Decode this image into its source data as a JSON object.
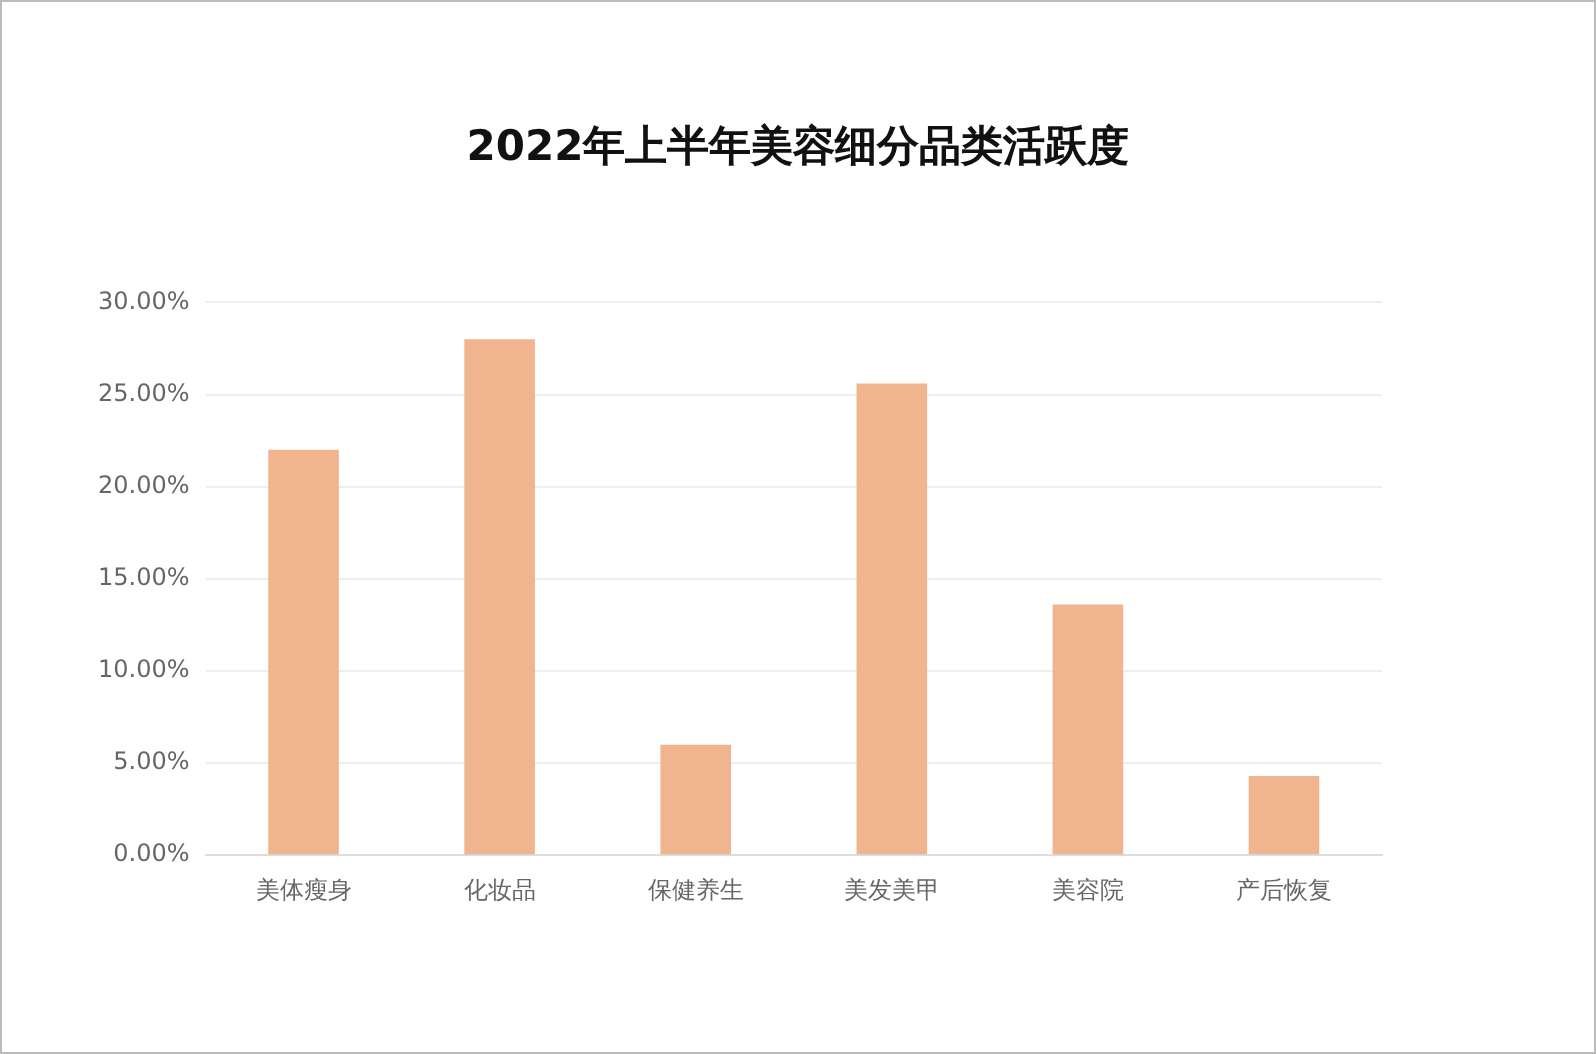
{
  "chart_data": {
    "type": "bar",
    "title": "2022年上半年美容细分品类活跃度",
    "categories": [
      "美体瘦身",
      "化妆品",
      "保健养生",
      "美发美甲",
      "美容院",
      "产后恢复"
    ],
    "values": [
      22.0,
      28.0,
      6.0,
      25.6,
      13.6,
      4.3
    ],
    "color": "#f0b48e",
    "ylim": [
      0,
      30
    ],
    "yticks": [
      {
        "value": 0,
        "label": "0.00%"
      },
      {
        "value": 5,
        "label": "5.00%"
      },
      {
        "value": 10,
        "label": "10.00%"
      },
      {
        "value": 15,
        "label": "15.00%"
      },
      {
        "value": 20,
        "label": "20.00%"
      },
      {
        "value": 25,
        "label": "25.00%"
      },
      {
        "value": 30,
        "label": "30.00%"
      }
    ],
    "grid": "y",
    "legend": false
  }
}
